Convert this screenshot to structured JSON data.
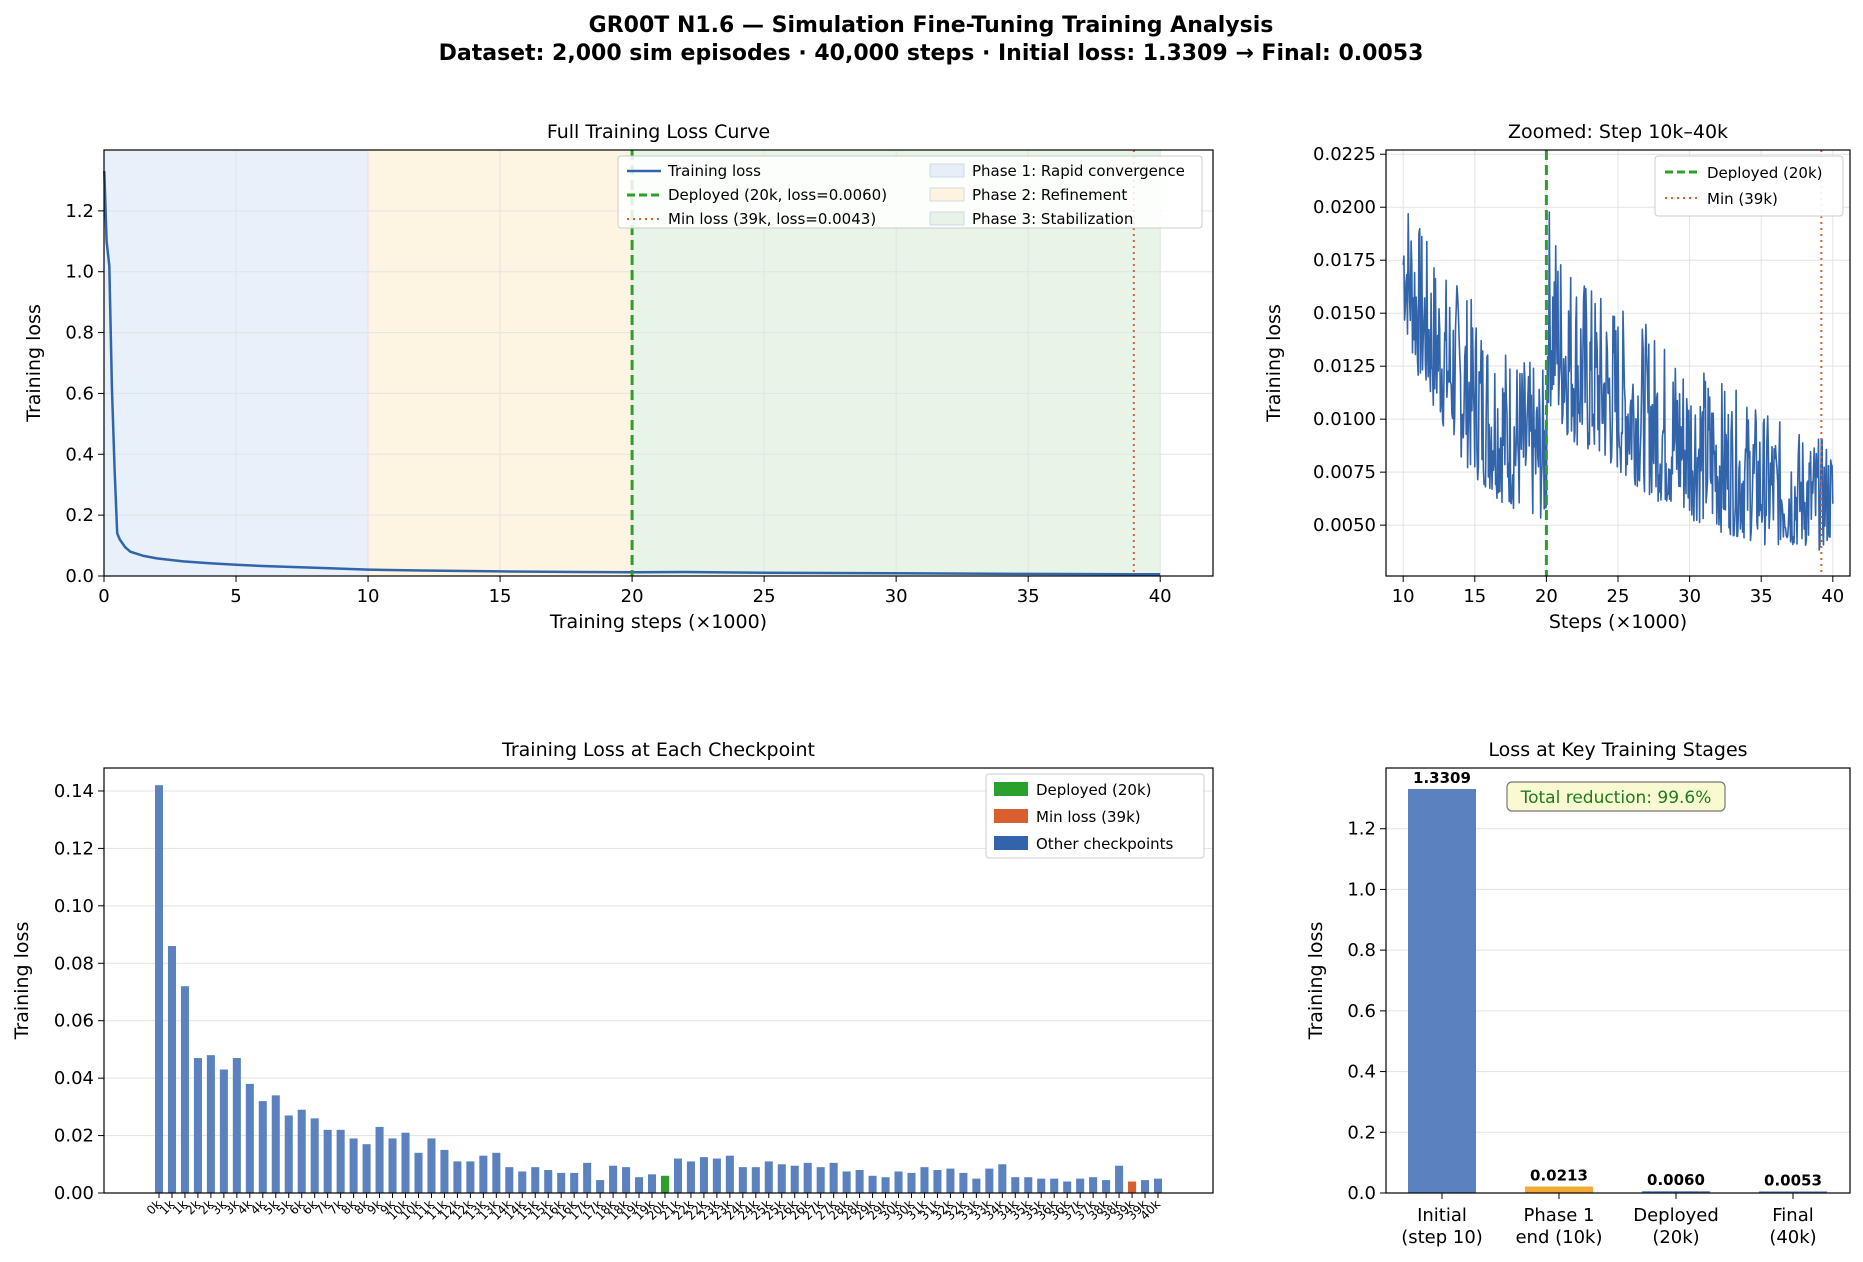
{
  "title": "GR00T N1.6 — Simulation Fine-Tuning Training Analysis",
  "subtitle": "Dataset: 2,000 sim episodes · 40,000 steps · Initial loss: 1.3309 → Final: 0.0053",
  "colors": {
    "loss": "#3264ac",
    "deployed": "#2ca02c",
    "min": "#d95f30",
    "bar": "#5b82be",
    "phase1_bar": "#f4a934",
    "phase1_bg": "#e6eef8",
    "phase2_bg": "#fdf3de",
    "phase3_bg": "#e6f3e6",
    "annot_bg": "#fafad2"
  },
  "chart_data": [
    {
      "id": "full_curve",
      "type": "line",
      "title": "Full Training Loss Curve",
      "xlabel": "Training steps (×1000)",
      "ylabel": "Training loss",
      "xlim": [
        0,
        42
      ],
      "ylim": [
        0,
        1.4
      ],
      "xticks": [
        0,
        5,
        10,
        15,
        20,
        25,
        30,
        35,
        40
      ],
      "yticks": [
        "0.0",
        "0.2",
        "0.4",
        "0.6",
        "0.8",
        "1.0",
        "1.2"
      ],
      "grid": true,
      "legend_position": "top-right",
      "phases": [
        {
          "label": "Phase 1: Rapid convergence",
          "x_start": 0,
          "x_end": 10
        },
        {
          "label": "Phase 2: Refinement",
          "x_start": 10,
          "x_end": 20
        },
        {
          "label": "Phase 3: Stabilization",
          "x_start": 20,
          "x_end": 40
        }
      ],
      "vlines": [
        {
          "label": "Deployed (20k, loss=0.0060)",
          "x": 20,
          "style": "dashed"
        },
        {
          "label": "Min loss (39k, loss=0.0043)",
          "x": 39,
          "style": "dotted"
        }
      ],
      "series": [
        {
          "name": "Training loss",
          "x": [
            0.01,
            0.1,
            0.2,
            0.3,
            0.4,
            0.5,
            0.6,
            0.8,
            1.0,
            1.5,
            2.0,
            3.0,
            4.0,
            5.0,
            6.0,
            8.0,
            10.0,
            12.0,
            15.0,
            18.0,
            20.0,
            22.0,
            25.0,
            30.0,
            35.0,
            39.0,
            40.0
          ],
          "y": [
            1.3309,
            1.1,
            1.02,
            0.62,
            0.35,
            0.14,
            0.12,
            0.095,
            0.08,
            0.066,
            0.058,
            0.048,
            0.042,
            0.037,
            0.033,
            0.027,
            0.021,
            0.018,
            0.015,
            0.013,
            0.012,
            0.013,
            0.011,
            0.009,
            0.007,
            0.006,
            0.006
          ]
        }
      ]
    },
    {
      "id": "zoomed",
      "type": "line",
      "title": "Zoomed: Step 10k–40k",
      "xlabel": "Steps (×1000)",
      "ylabel": "Training loss",
      "xlim": [
        8.8,
        41.2
      ],
      "ylim": [
        0.0026,
        0.0227
      ],
      "xticks": [
        10,
        15,
        20,
        25,
        30,
        35,
        40
      ],
      "yticks": [
        "0.0050",
        "0.0075",
        "0.0100",
        "0.0125",
        "0.0150",
        "0.0175",
        "0.0200",
        "0.0225"
      ],
      "grid": true,
      "legend_position": "top-right",
      "vlines": [
        {
          "label": "Deployed (20k)",
          "x": 20,
          "style": "dashed"
        },
        {
          "label": "Min (39k)",
          "x": 39.2,
          "style": "dotted"
        }
      ],
      "series": [
        {
          "name": "Training loss",
          "envelope_x": [
            10,
            11,
            12,
            13,
            14,
            15,
            16,
            17,
            18,
            19,
            20,
            20.1,
            21,
            22,
            23,
            24,
            25,
            26,
            27,
            28,
            29,
            30,
            31,
            32,
            33,
            34,
            35,
            36,
            37,
            38,
            39,
            40
          ],
          "envelope_upper": [
            0.0215,
            0.0195,
            0.018,
            0.017,
            0.0165,
            0.0155,
            0.0145,
            0.0138,
            0.0132,
            0.0127,
            0.0123,
            0.0205,
            0.0185,
            0.0175,
            0.0165,
            0.016,
            0.0155,
            0.015,
            0.0145,
            0.014,
            0.0135,
            0.013,
            0.0125,
            0.012,
            0.0115,
            0.011,
            0.0105,
            0.01,
            0.0098,
            0.0095,
            0.0092,
            0.009
          ],
          "envelope_lower": [
            0.0145,
            0.012,
            0.0105,
            0.0093,
            0.0082,
            0.0072,
            0.0066,
            0.006,
            0.0056,
            0.0053,
            0.0051,
            0.0108,
            0.0095,
            0.0088,
            0.0082,
            0.0078,
            0.0074,
            0.007,
            0.0065,
            0.006,
            0.0056,
            0.0053,
            0.005,
            0.0047,
            0.0045,
            0.0043,
            0.0041,
            0.004,
            0.0039,
            0.0039,
            0.0038,
            0.0042
          ]
        }
      ]
    },
    {
      "id": "checkpoints",
      "type": "bar",
      "title": "Training Loss at Each Checkpoint",
      "xlabel": "",
      "ylabel": "Training loss",
      "ylim": [
        0,
        0.148
      ],
      "yticks": [
        "0.00",
        "0.02",
        "0.04",
        "0.06",
        "0.08",
        "0.10",
        "0.12",
        "0.14"
      ],
      "grid": true,
      "legend_position": "top-right",
      "legend": [
        "Deployed (20k)",
        "Min loss (39k)",
        "Other checkpoints"
      ],
      "categories": [
        "0k",
        "1k",
        "1k",
        "2k",
        "2k",
        "3k",
        "3k",
        "4k",
        "4k",
        "5k",
        "5k",
        "6k",
        "6k",
        "7k",
        "7k",
        "8k",
        "8k",
        "9k",
        "9k",
        "10k",
        "10k",
        "11k",
        "11k",
        "12k",
        "12k",
        "13k",
        "13k",
        "14k",
        "14k",
        "15k",
        "15k",
        "16k",
        "16k",
        "17k",
        "17k",
        "18k",
        "18k",
        "19k",
        "19k",
        "20k",
        "21k",
        "22k",
        "22k",
        "23k",
        "23k",
        "24k",
        "24k",
        "25k",
        "25k",
        "26k",
        "26k",
        "27k",
        "27k",
        "28k",
        "28k",
        "29k",
        "29k",
        "30k",
        "30k",
        "31k",
        "31k",
        "32k",
        "32k",
        "33k",
        "33k",
        "34k",
        "34k",
        "35k",
        "35k",
        "36k",
        "36k",
        "37k",
        "37k",
        "38k",
        "38k",
        "39k",
        "39k",
        "40k"
      ],
      "values": [
        0.142,
        0.086,
        0.072,
        0.047,
        0.048,
        0.043,
        0.047,
        0.038,
        0.032,
        0.034,
        0.027,
        0.029,
        0.026,
        0.022,
        0.022,
        0.019,
        0.017,
        0.023,
        0.019,
        0.021,
        0.014,
        0.019,
        0.015,
        0.011,
        0.011,
        0.013,
        0.014,
        0.009,
        0.0075,
        0.009,
        0.008,
        0.007,
        0.007,
        0.0105,
        0.0045,
        0.0095,
        0.009,
        0.0055,
        0.0065,
        0.006,
        0.012,
        0.011,
        0.0125,
        0.012,
        0.013,
        0.009,
        0.009,
        0.011,
        0.01,
        0.0095,
        0.0105,
        0.009,
        0.0105,
        0.0075,
        0.008,
        0.006,
        0.0055,
        0.0075,
        0.007,
        0.009,
        0.008,
        0.0085,
        0.007,
        0.005,
        0.0085,
        0.01,
        0.0055,
        0.0055,
        0.005,
        0.005,
        0.004,
        0.005,
        0.0055,
        0.0045,
        0.0095,
        0.004,
        0.0045,
        0.005
      ],
      "highlight": {
        "deployed_index": 39,
        "min_index": 75
      }
    },
    {
      "id": "stages",
      "type": "bar",
      "title": "Loss at Key Training Stages",
      "xlabel": "",
      "ylabel": "Training loss",
      "ylim": [
        0,
        1.4
      ],
      "yticks": [
        "0.0",
        "0.2",
        "0.4",
        "0.6",
        "0.8",
        "1.0",
        "1.2"
      ],
      "grid": true,
      "categories": [
        [
          "Initial",
          "(step 10)"
        ],
        [
          "Phase 1",
          "end (10k)"
        ],
        [
          "Deployed",
          "(20k)"
        ],
        [
          "Final",
          "(40k)"
        ]
      ],
      "values": [
        1.3309,
        0.0213,
        0.006,
        0.0053
      ],
      "data_labels": [
        "1.3309",
        "0.0213",
        "0.0060",
        "0.0053"
      ],
      "annotation": "Total reduction: 99.6%"
    }
  ]
}
